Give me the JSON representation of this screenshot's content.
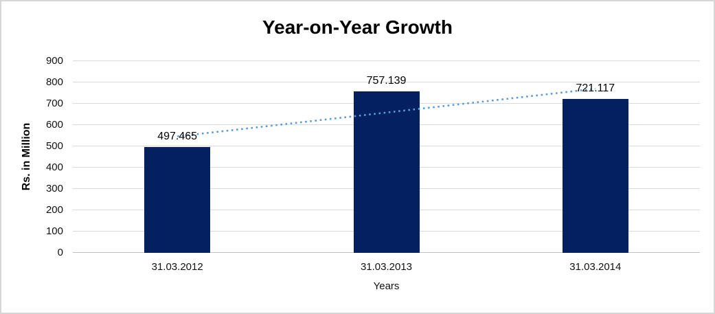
{
  "chart_data": {
    "type": "bar",
    "title": "Year-on-Year Growth",
    "categories": [
      "31.03.2012",
      "31.03.2013",
      "31.03.2014"
    ],
    "values": [
      497.465,
      757.139,
      721.117
    ],
    "data_labels": [
      "497.465",
      "757.139",
      "721.117"
    ],
    "xlabel": "Years",
    "ylabel": "Rs. in Million",
    "ylim": [
      0,
      900
    ],
    "ytick_step": 100,
    "yticks": [
      "900",
      "800",
      "700",
      "600",
      "500",
      "400",
      "300",
      "200",
      "100",
      "0"
    ],
    "grid": true,
    "legend": "none",
    "bar_color": "#052060",
    "gridline_color": "#d9d9d9",
    "axis_line_color": "#bfbfbf",
    "trendline": {
      "type": "linear",
      "style": "dotted",
      "color": "#5b9bd5"
    }
  }
}
